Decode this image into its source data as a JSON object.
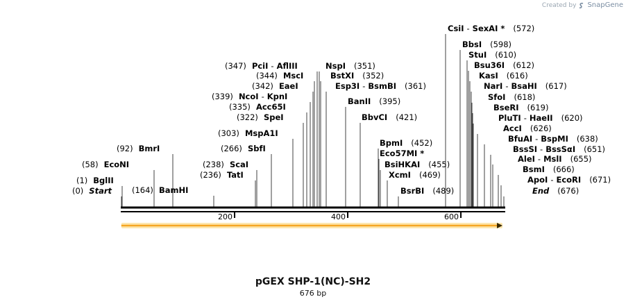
{
  "credit": {
    "prefix": "Created by",
    "brand": "SnapGene",
    "logo_icon": "snapgene-logo-icon"
  },
  "sequence": {
    "name": "pGEX SHP-1(NC)-SH2",
    "length_label": "676 bp",
    "length": 676
  },
  "ruler": {
    "ticks": [
      {
        "value": 200,
        "label": "200"
      },
      {
        "value": 400,
        "label": "400"
      },
      {
        "value": 600,
        "label": "600"
      }
    ]
  },
  "feature": {
    "name": "orange-feature-arrow",
    "start": 1,
    "end": 676,
    "color": "#f5a623",
    "glow": "#fde7b0"
  },
  "sites": [
    {
      "pos": 0,
      "pos_label": "(0)",
      "names": [
        "Start"
      ],
      "special": true
    },
    {
      "pos": 1,
      "pos_label": "(1)",
      "names": [
        "BglII"
      ]
    },
    {
      "pos": 58,
      "pos_label": "(58)",
      "names": [
        "EcoNI"
      ]
    },
    {
      "pos": 92,
      "pos_label": "(92)",
      "names": [
        "BmrI"
      ]
    },
    {
      "pos": 164,
      "pos_label": "(164)",
      "names": [
        "BamHI"
      ]
    },
    {
      "pos": 236,
      "pos_label": "(236)",
      "names": [
        "TatI"
      ]
    },
    {
      "pos": 238,
      "pos_label": "(238)",
      "names": [
        "ScaI"
      ]
    },
    {
      "pos": 266,
      "pos_label": "(266)",
      "names": [
        "SbfI"
      ]
    },
    {
      "pos": 303,
      "pos_label": "(303)",
      "names": [
        "MspA1I"
      ]
    },
    {
      "pos": 322,
      "pos_label": "(322)",
      "names": [
        "SpeI"
      ]
    },
    {
      "pos": 335,
      "pos_label": "(335)",
      "names": [
        "Acc65I"
      ]
    },
    {
      "pos": 339,
      "pos_label": "(339)",
      "names": [
        "NcoI",
        "KpnI"
      ]
    },
    {
      "pos": 342,
      "pos_label": "(342)",
      "names": [
        "EaeI"
      ]
    },
    {
      "pos": 344,
      "pos_label": "(344)",
      "names": [
        "MscI"
      ]
    },
    {
      "pos": 347,
      "pos_label": "(347)",
      "names": [
        "PciI",
        "AflIII"
      ]
    },
    {
      "pos": 351,
      "pos_label": "(351)",
      "names": [
        "NspI"
      ]
    },
    {
      "pos": 352,
      "pos_label": "(352)",
      "names": [
        "BstXI"
      ]
    },
    {
      "pos": 361,
      "pos_label": "(361)",
      "names": [
        "Esp3I",
        "BsmBI"
      ]
    },
    {
      "pos": 395,
      "pos_label": "(395)",
      "names": [
        "BanII"
      ]
    },
    {
      "pos": 421,
      "pos_label": "(421)",
      "names": [
        "BbvCI"
      ]
    },
    {
      "pos": 452,
      "pos_label": "(452)",
      "names": [
        "BpmI"
      ]
    },
    {
      "pos": 453,
      "pos_label": "",
      "names": [
        "Eco57MI *"
      ]
    },
    {
      "pos": 455,
      "pos_label": "(455)",
      "names": [
        "BsiHKAI"
      ]
    },
    {
      "pos": 469,
      "pos_label": "(469)",
      "names": [
        "XcmI"
      ]
    },
    {
      "pos": 489,
      "pos_label": "(489)",
      "names": [
        "BsrBI"
      ]
    },
    {
      "pos": 572,
      "pos_label": "(572)",
      "names": [
        "CsiI",
        "SexAI *"
      ]
    },
    {
      "pos": 598,
      "pos_label": "(598)",
      "names": [
        "BbsI"
      ]
    },
    {
      "pos": 610,
      "pos_label": "(610)",
      "names": [
        "StuI"
      ]
    },
    {
      "pos": 612,
      "pos_label": "(612)",
      "names": [
        "Bsu36I"
      ]
    },
    {
      "pos": 616,
      "pos_label": "(616)",
      "names": [
        "KasI"
      ]
    },
    {
      "pos": 617,
      "pos_label": "(617)",
      "names": [
        "NarI",
        "BsaHI"
      ]
    },
    {
      "pos": 618,
      "pos_label": "(618)",
      "names": [
        "SfoI"
      ]
    },
    {
      "pos": 619,
      "pos_label": "(619)",
      "names": [
        "BseRI"
      ]
    },
    {
      "pos": 620,
      "pos_label": "(620)",
      "names": [
        "PluTI",
        "HaeII"
      ]
    },
    {
      "pos": 626,
      "pos_label": "(626)",
      "names": [
        "AccI"
      ]
    },
    {
      "pos": 638,
      "pos_label": "(638)",
      "names": [
        "BfuAI",
        "BspMI"
      ]
    },
    {
      "pos": 651,
      "pos_label": "(651)",
      "names": [
        "BssSI",
        "BssSαI"
      ]
    },
    {
      "pos": 655,
      "pos_label": "(655)",
      "names": [
        "AleI",
        "MslI"
      ]
    },
    {
      "pos": 666,
      "pos_label": "(666)",
      "names": [
        "BsmI"
      ]
    },
    {
      "pos": 671,
      "pos_label": "(671)",
      "names": [
        "ApoI",
        "EcoRI"
      ]
    },
    {
      "pos": 676,
      "pos_label": "(676)",
      "names": [
        "End"
      ],
      "special": true
    }
  ]
}
